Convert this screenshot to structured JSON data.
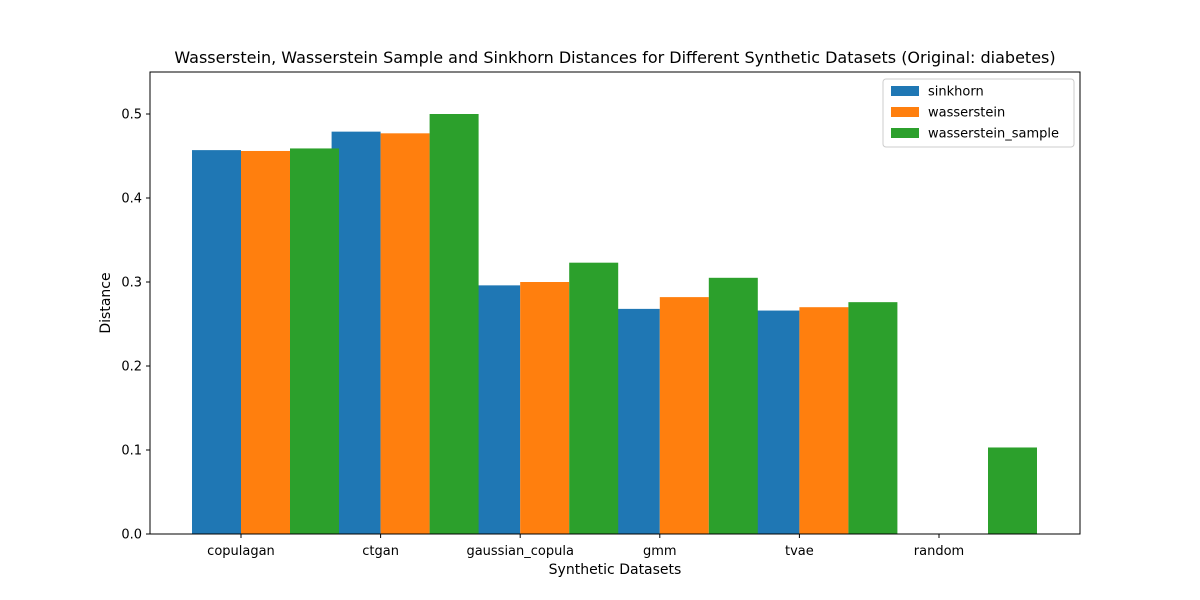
{
  "chart_data": {
    "type": "bar",
    "title": "Wasserstein, Wasserstein Sample and Sinkhorn Distances for Different Synthetic Datasets (Original: diabetes)",
    "xlabel": "Synthetic Datasets",
    "ylabel": "Distance",
    "categories": [
      "copulagan",
      "ctgan",
      "gaussian_copula",
      "gmm",
      "tvae",
      "random"
    ],
    "ylim": [
      0,
      0.55
    ],
    "yticks": [
      "0.0",
      "0.1",
      "0.2",
      "0.3",
      "0.4",
      "0.5"
    ],
    "grid": false,
    "legend_position": "top-right",
    "series": [
      {
        "name": "sinkhorn",
        "color": "#1f77b4",
        "values": [
          0.457,
          0.479,
          0.296,
          0.268,
          0.266,
          0.0
        ]
      },
      {
        "name": "wasserstein",
        "color": "#ff7f0e",
        "values": [
          0.456,
          0.477,
          0.3,
          0.282,
          0.27,
          0.0
        ]
      },
      {
        "name": "wasserstein_sample",
        "color": "#2ca02c",
        "values": [
          0.459,
          0.5,
          0.323,
          0.305,
          0.276,
          0.103
        ]
      }
    ]
  }
}
